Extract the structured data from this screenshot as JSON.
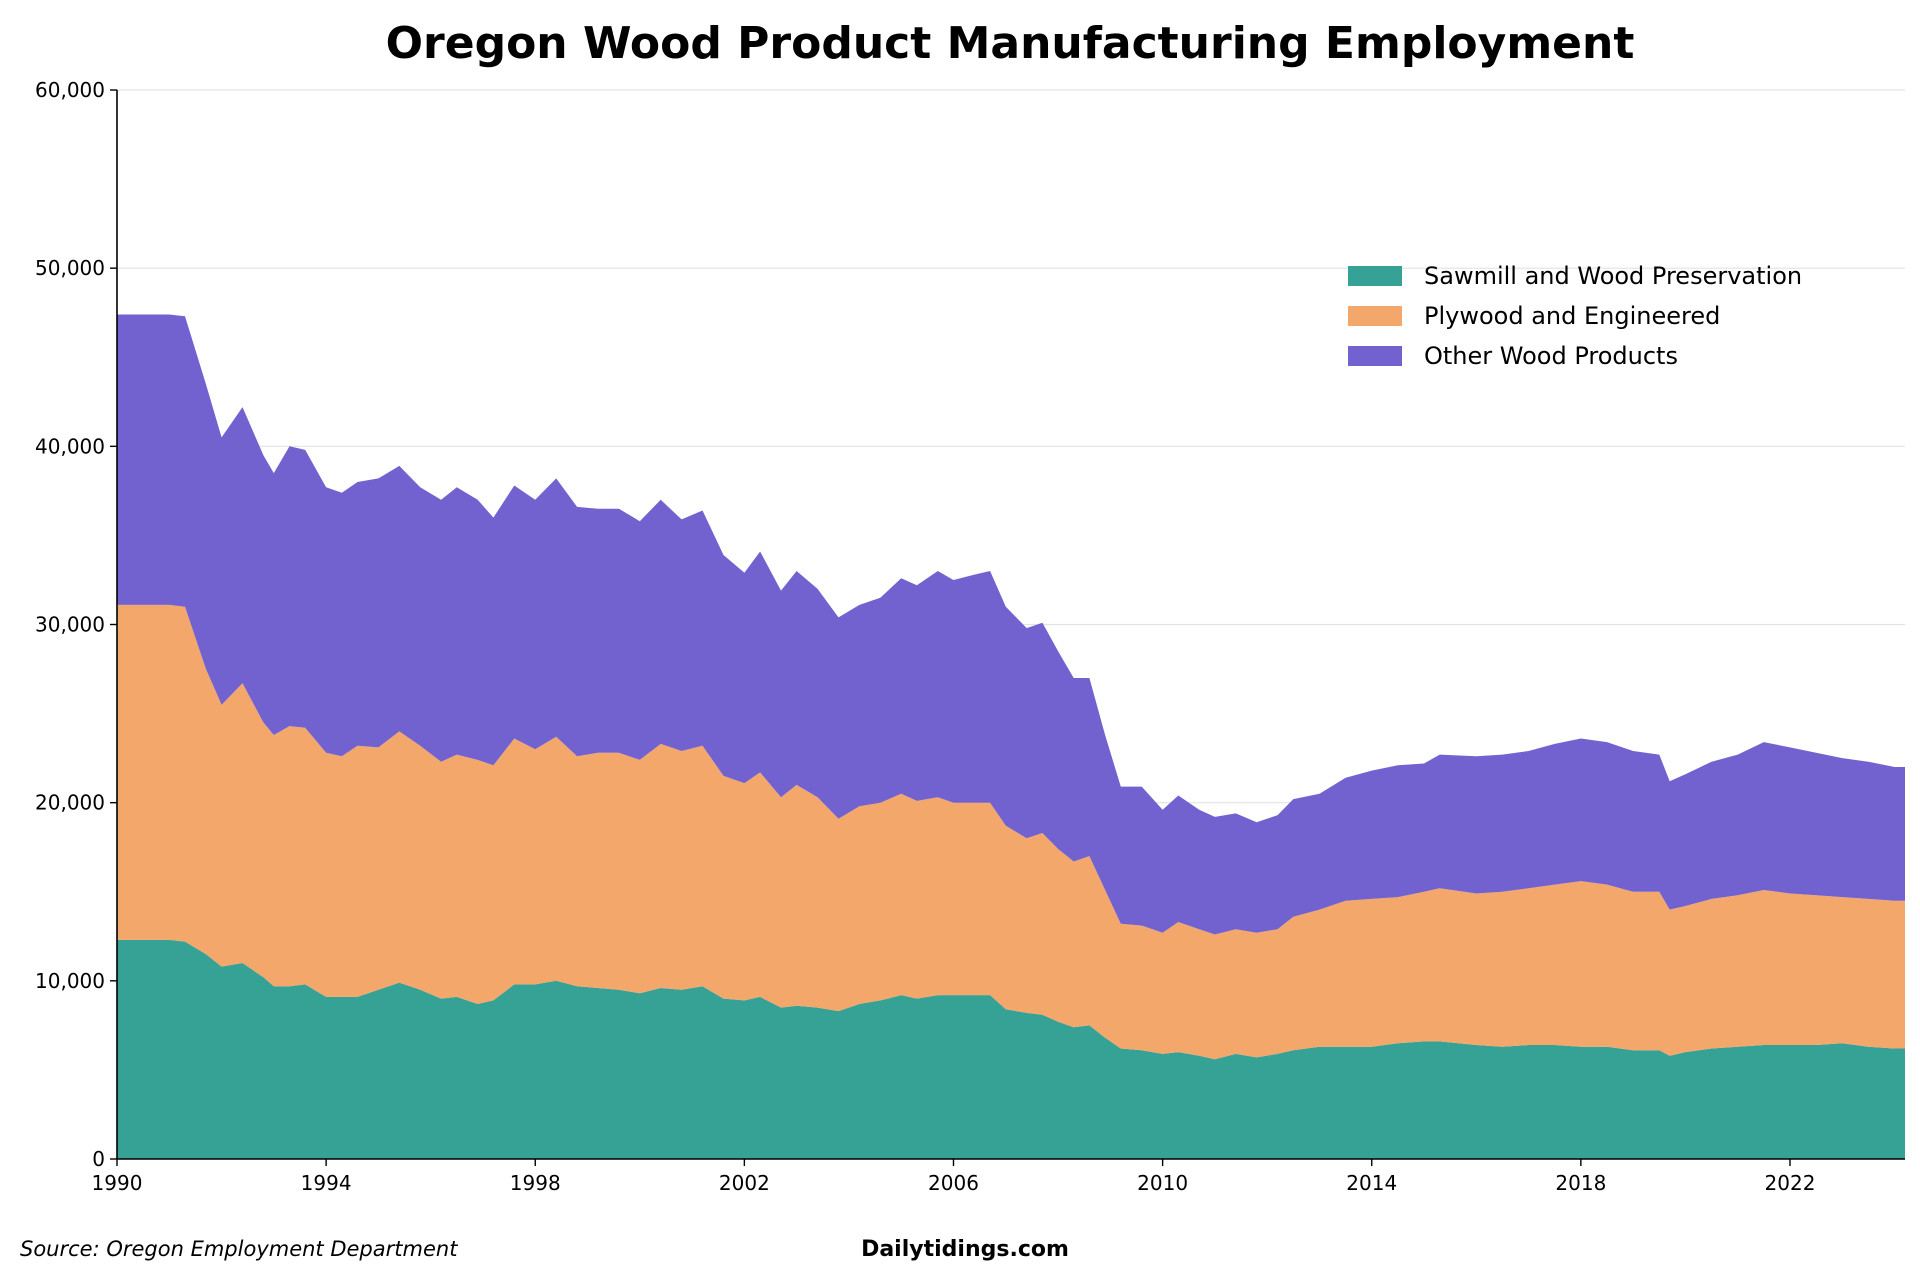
{
  "chart_data": {
    "type": "area",
    "stacked": true,
    "title": "Oregon Wood Product Manufacturing Employment",
    "xlabel": "",
    "ylabel": "",
    "xlim": [
      1990,
      2024.2
    ],
    "ylim": [
      0,
      60000
    ],
    "x_ticks": [
      "1990",
      "1994",
      "1998",
      "2002",
      "2006",
      "2010",
      "2014",
      "2018",
      "2022"
    ],
    "y_ticks": [
      "0",
      "10,000",
      "20,000",
      "30,000",
      "40,000",
      "50,000",
      "60,000"
    ],
    "grid": "horizontal",
    "legend_position": "upper-right",
    "x": [
      1990,
      1991,
      1991.3,
      1991.7,
      1992,
      1992.4,
      1992.8,
      1993,
      1993.3,
      1993.6,
      1994,
      1994.3,
      1994.6,
      1995,
      1995.4,
      1995.8,
      1996.2,
      1996.5,
      1996.9,
      1997.2,
      1997.6,
      1998,
      1998.4,
      1998.8,
      1999.2,
      1999.6,
      2000,
      2000.4,
      2000.8,
      2001.2,
      2001.6,
      2002,
      2002.3,
      2002.7,
      2003,
      2003.4,
      2003.8,
      2004.2,
      2004.6,
      2005,
      2005.3,
      2005.7,
      2006,
      2006.4,
      2006.7,
      2007,
      2007.4,
      2007.7,
      2008,
      2008.3,
      2008.6,
      2008.9,
      2009.2,
      2009.6,
      2010,
      2010.3,
      2010.7,
      2011,
      2011.4,
      2011.8,
      2012.2,
      2012.5,
      2013,
      2013.5,
      2014,
      2014.5,
      2015,
      2015.3,
      2016,
      2016.5,
      2017,
      2017.5,
      2018,
      2018.5,
      2019,
      2019.5,
      2019.7,
      2020,
      2020.5,
      2021,
      2021.5,
      2022,
      2022.5,
      2023,
      2023.5,
      2024,
      2024.2
    ],
    "series": [
      {
        "name": "Sawmill and Wood Preservation",
        "color": "#36a296",
        "values": [
          12300,
          12300,
          12200,
          11500,
          10800,
          11000,
          10200,
          9700,
          9700,
          9800,
          9100,
          9100,
          9100,
          9500,
          9900,
          9500,
          9000,
          9100,
          8700,
          8900,
          9800,
          9800,
          10000,
          9700,
          9600,
          9500,
          9300,
          9600,
          9500,
          9700,
          9000,
          8900,
          9100,
          8500,
          8600,
          8500,
          8300,
          8700,
          8900,
          9200,
          9000,
          9200,
          9200,
          9200,
          9200,
          8400,
          8200,
          8100,
          7700,
          7400,
          7500,
          6800,
          6200,
          6100,
          5900,
          6000,
          5800,
          5600,
          5900,
          5700,
          5900,
          6100,
          6300,
          6300,
          6300,
          6500,
          6600,
          6600,
          6400,
          6300,
          6400,
          6400,
          6300,
          6300,
          6100,
          6100,
          5800,
          6000,
          6200,
          6300,
          6400,
          6400,
          6400,
          6500,
          6300,
          6200,
          6200
        ]
      },
      {
        "name": "Plywood and Engineered",
        "color": "#f4a76a",
        "values": [
          18800,
          18800,
          18800,
          16000,
          14700,
          15700,
          14300,
          14100,
          14600,
          14400,
          13700,
          13500,
          14100,
          13600,
          14100,
          13700,
          13300,
          13600,
          13700,
          13200,
          13800,
          13200,
          13700,
          12900,
          13200,
          13300,
          13100,
          13700,
          13400,
          13500,
          12500,
          12200,
          12600,
          11800,
          12400,
          11800,
          10800,
          11100,
          11100,
          11300,
          11100,
          11100,
          10800,
          10800,
          10800,
          10300,
          9800,
          10200,
          9700,
          9300,
          9500,
          8300,
          7000,
          7000,
          6800,
          7300,
          7100,
          7000,
          7000,
          7000,
          7000,
          7500,
          7700,
          8200,
          8300,
          8200,
          8400,
          8600,
          8500,
          8700,
          8800,
          9000,
          9300,
          9100,
          8900,
          8900,
          8200,
          8200,
          8400,
          8500,
          8700,
          8500,
          8400,
          8200,
          8300,
          8300,
          8300
        ]
      },
      {
        "name": "Other Wood Products",
        "color": "#7262d0",
        "values": [
          16300,
          16300,
          16300,
          16000,
          15000,
          15500,
          15000,
          14700,
          15700,
          15600,
          14900,
          14800,
          14800,
          15100,
          14900,
          14500,
          14700,
          15000,
          14600,
          13900,
          14200,
          14000,
          14500,
          14000,
          13700,
          13700,
          13400,
          13700,
          13000,
          13200,
          12400,
          11800,
          12400,
          11600,
          12000,
          11700,
          11300,
          11300,
          11500,
          12100,
          12100,
          12700,
          12500,
          12800,
          13000,
          12300,
          11800,
          11800,
          11100,
          10300,
          10000,
          8700,
          7700,
          7800,
          6900,
          7100,
          6700,
          6600,
          6500,
          6200,
          6400,
          6600,
          6500,
          6900,
          7200,
          7400,
          7200,
          7500,
          7700,
          7700,
          7700,
          7900,
          8000,
          8000,
          7900,
          7700,
          7200,
          7400,
          7700,
          7900,
          8300,
          8200,
          8000,
          7800,
          7700,
          7500,
          7500
        ]
      }
    ]
  },
  "footer": {
    "source": "Source: Oregon Employment Department",
    "brand": "Dailytidings.com"
  }
}
